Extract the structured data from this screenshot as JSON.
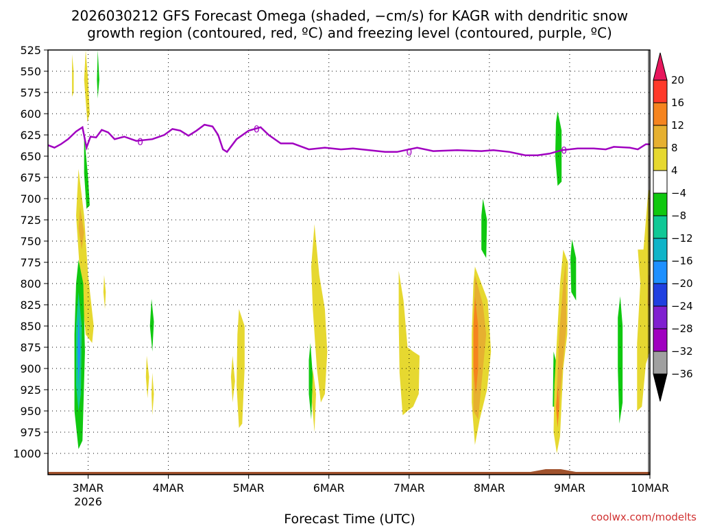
{
  "chart_data": {
    "type": "heatmap",
    "title_line1": "2026030212 GFS Forecast Omega (shaded, −cm/s) for KAGR with dendritic snow",
    "title_line2": "growth region (contoured, red, ºC) and freezing level (contoured, purple, ºC)",
    "xlabel": "Forecast Time (UTC)",
    "credit": "coolwx.com/modelts",
    "y_axis": {
      "levels": [
        525,
        550,
        575,
        600,
        625,
        650,
        675,
        700,
        725,
        750,
        775,
        800,
        825,
        850,
        875,
        900,
        925,
        950,
        975,
        1000
      ],
      "labels": [
        "525",
        "550",
        "575",
        "600",
        "625",
        "650",
        "675",
        "700",
        "725",
        "750",
        "775",
        "800",
        "825",
        "850",
        "875",
        "900",
        "925",
        "950",
        "975",
        "1000"
      ],
      "range": [
        525,
        1025
      ]
    },
    "x_axis": {
      "range_days": [
        2.5,
        10.0
      ],
      "ticks": [
        {
          "day": 3,
          "label": "3MAR",
          "sub": "2026"
        },
        {
          "day": 4,
          "label": "4MAR",
          "sub": ""
        },
        {
          "day": 5,
          "label": "5MAR",
          "sub": ""
        },
        {
          "day": 6,
          "label": "6MAR",
          "sub": ""
        },
        {
          "day": 7,
          "label": "7MAR",
          "sub": ""
        },
        {
          "day": 8,
          "label": "8MAR",
          "sub": ""
        },
        {
          "day": 9,
          "label": "9MAR",
          "sub": ""
        },
        {
          "day": 10,
          "label": "10MAR",
          "sub": ""
        }
      ]
    },
    "colorbar": {
      "labels": [
        "20",
        "16",
        "12",
        "8",
        "4",
        "−4",
        "−8",
        "−12",
        "−16",
        "−20",
        "−24",
        "−28",
        "−32",
        "−36"
      ],
      "colors": [
        "#e8175d",
        "#ff3a2a",
        "#f5841f",
        "#e6b030",
        "#e6d830",
        "#ffffff",
        "#10c810",
        "#10c896",
        "#10b4c8",
        "#1e90ff",
        "#2040e0",
        "#8020d0",
        "#a000c0",
        "#a0a0a0",
        "#000000"
      ],
      "legend": [
        {
          "color": "#e6d830",
          "label": "4 to 8"
        },
        {
          "color": "#e6b030",
          "label": "8 to 12"
        },
        {
          "color": "#f5841f",
          "label": "12 to 16"
        },
        {
          "color": "#10c810",
          "label": "−4 to −8"
        },
        {
          "color": "#10b4c8",
          "label": "−12 to −16"
        },
        {
          "color": "#1e90ff",
          "label": "−16 to −20"
        }
      ]
    },
    "freezing_level": {
      "color": "#a000c0",
      "contour_label": "0",
      "points": [
        [
          2.5,
          637
        ],
        [
          2.58,
          640
        ],
        [
          2.66,
          636
        ],
        [
          2.75,
          630
        ],
        [
          2.85,
          621
        ],
        [
          2.93,
          616
        ],
        [
          2.98,
          640
        ],
        [
          3.03,
          627
        ],
        [
          3.1,
          628
        ],
        [
          3.17,
          619
        ],
        [
          3.25,
          622
        ],
        [
          3.33,
          630
        ],
        [
          3.45,
          627
        ],
        [
          3.6,
          632
        ],
        [
          3.8,
          630
        ],
        [
          3.95,
          625
        ],
        [
          4.05,
          618
        ],
        [
          4.15,
          620
        ],
        [
          4.25,
          626
        ],
        [
          4.35,
          620
        ],
        [
          4.45,
          613
        ],
        [
          4.55,
          615
        ],
        [
          4.62,
          625
        ],
        [
          4.68,
          642
        ],
        [
          4.73,
          645
        ],
        [
          4.85,
          630
        ],
        [
          5.0,
          620
        ],
        [
          5.15,
          616
        ],
        [
          5.25,
          625
        ],
        [
          5.4,
          635
        ],
        [
          5.55,
          635
        ],
        [
          5.75,
          642
        ],
        [
          5.95,
          640
        ],
        [
          6.15,
          642
        ],
        [
          6.3,
          641
        ],
        [
          6.5,
          643
        ],
        [
          6.7,
          645
        ],
        [
          6.85,
          645
        ],
        [
          7.1,
          640
        ],
        [
          7.3,
          644
        ],
        [
          7.6,
          643
        ],
        [
          7.9,
          644
        ],
        [
          8.05,
          643
        ],
        [
          8.25,
          645
        ],
        [
          8.45,
          649
        ],
        [
          8.6,
          649
        ],
        [
          8.75,
          647
        ],
        [
          8.9,
          643
        ],
        [
          9.1,
          641
        ],
        [
          9.3,
          641
        ],
        [
          9.45,
          642
        ],
        [
          9.55,
          639
        ],
        [
          9.75,
          640
        ],
        [
          9.85,
          642
        ],
        [
          9.95,
          636
        ],
        [
          10.0,
          636
        ]
      ]
    },
    "omega_blobs": [
      {
        "color": "#e6d830",
        "points": [
          [
            2.8,
            530
          ],
          [
            2.82,
            550
          ],
          [
            2.82,
            575
          ],
          [
            2.8,
            580
          ]
        ]
      },
      {
        "color": "#e6d830",
        "points": [
          [
            2.97,
            525
          ],
          [
            3.0,
            560
          ],
          [
            3.02,
            600
          ],
          [
            2.99,
            610
          ],
          [
            2.95,
            560
          ]
        ]
      },
      {
        "color": "#10c810",
        "points": [
          [
            3.12,
            525
          ],
          [
            3.14,
            560
          ],
          [
            3.12,
            582
          ],
          [
            3.11,
            560
          ]
        ]
      },
      {
        "color": "#10c810",
        "points": [
          [
            2.95,
            625
          ],
          [
            3.0,
            675
          ],
          [
            3.02,
            708
          ],
          [
            2.98,
            712
          ],
          [
            2.95,
            670
          ]
        ]
      },
      {
        "color": "#e6d830",
        "points": [
          [
            2.88,
            665
          ],
          [
            2.95,
            720
          ],
          [
            3.0,
            790
          ],
          [
            3.07,
            850
          ],
          [
            3.05,
            870
          ],
          [
            2.97,
            860
          ],
          [
            2.9,
            790
          ],
          [
            2.85,
            720
          ]
        ]
      },
      {
        "color": "#e6b030",
        "points": [
          [
            2.9,
            710
          ],
          [
            2.95,
            740
          ],
          [
            2.92,
            760
          ],
          [
            2.88,
            735
          ]
        ]
      },
      {
        "color": "#10c810",
        "points": [
          [
            2.88,
            772
          ],
          [
            2.94,
            800
          ],
          [
            2.96,
            880
          ],
          [
            2.93,
            985
          ],
          [
            2.88,
            995
          ],
          [
            2.83,
            950
          ],
          [
            2.83,
            860
          ],
          [
            2.85,
            800
          ]
        ]
      },
      {
        "color": "#10c896",
        "points": [
          [
            2.88,
            810
          ],
          [
            2.92,
            850
          ],
          [
            2.91,
            930
          ],
          [
            2.88,
            950
          ],
          [
            2.85,
            920
          ],
          [
            2.85,
            850
          ]
        ]
      },
      {
        "color": "#1e90ff",
        "points": [
          [
            2.88,
            835
          ],
          [
            2.9,
            880
          ],
          [
            2.88,
            920
          ],
          [
            2.87,
            880
          ]
        ]
      },
      {
        "color": "#e6d830",
        "points": [
          [
            3.2,
            790
          ],
          [
            3.22,
            810
          ],
          [
            3.21,
            830
          ],
          [
            3.19,
            810
          ]
        ]
      },
      {
        "color": "#10c810",
        "points": [
          [
            3.79,
            818
          ],
          [
            3.82,
            845
          ],
          [
            3.8,
            880
          ],
          [
            3.77,
            850
          ]
        ]
      },
      {
        "color": "#e6d830",
        "points": [
          [
            3.73,
            885
          ],
          [
            3.76,
            910
          ],
          [
            3.74,
            935
          ],
          [
            3.72,
            910
          ]
        ]
      },
      {
        "color": "#e6d830",
        "points": [
          [
            3.8,
            905
          ],
          [
            3.82,
            930
          ],
          [
            3.8,
            955
          ],
          [
            3.79,
            930
          ]
        ]
      },
      {
        "color": "#e6d830",
        "points": [
          [
            4.8,
            885
          ],
          [
            4.83,
            915
          ],
          [
            4.8,
            940
          ],
          [
            4.78,
            910
          ]
        ]
      },
      {
        "color": "#e6d830",
        "points": [
          [
            4.88,
            830
          ],
          [
            4.95,
            850
          ],
          [
            4.95,
            900
          ],
          [
            4.92,
            965
          ],
          [
            4.88,
            970
          ],
          [
            4.85,
            920
          ],
          [
            4.86,
            860
          ]
        ]
      },
      {
        "color": "#e6d830",
        "points": [
          [
            5.82,
            730
          ],
          [
            5.88,
            790
          ],
          [
            5.95,
            830
          ],
          [
            5.98,
            880
          ],
          [
            5.95,
            930
          ],
          [
            5.9,
            940
          ],
          [
            5.85,
            900
          ],
          [
            5.8,
            830
          ],
          [
            5.78,
            780
          ]
        ]
      },
      {
        "color": "#10c810",
        "points": [
          [
            5.77,
            870
          ],
          [
            5.8,
            910
          ],
          [
            5.78,
            960
          ],
          [
            5.75,
            930
          ],
          [
            5.75,
            890
          ]
        ]
      },
      {
        "color": "#e6d830",
        "points": [
          [
            5.8,
            900
          ],
          [
            5.84,
            930
          ],
          [
            5.82,
            975
          ],
          [
            5.79,
            940
          ]
        ]
      },
      {
        "color": "#e6d830",
        "points": [
          [
            6.87,
            785
          ],
          [
            6.93,
            820
          ],
          [
            6.98,
            875
          ],
          [
            7.05,
            880
          ],
          [
            7.13,
            885
          ],
          [
            7.12,
            930
          ],
          [
            7.05,
            945
          ],
          [
            6.98,
            950
          ],
          [
            6.92,
            955
          ],
          [
            6.88,
            905
          ],
          [
            6.87,
            845
          ]
        ]
      },
      {
        "color": "#10c810",
        "points": [
          [
            7.92,
            700
          ],
          [
            7.97,
            725
          ],
          [
            7.96,
            770
          ],
          [
            7.9,
            760
          ],
          [
            7.9,
            720
          ]
        ]
      },
      {
        "color": "#e6d830",
        "points": [
          [
            7.82,
            780
          ],
          [
            7.9,
            800
          ],
          [
            7.98,
            820
          ],
          [
            8.02,
            880
          ],
          [
            7.97,
            925
          ],
          [
            7.88,
            960
          ],
          [
            7.82,
            990
          ],
          [
            7.78,
            940
          ],
          [
            7.78,
            860
          ],
          [
            7.8,
            800
          ]
        ]
      },
      {
        "color": "#e6b030",
        "points": [
          [
            7.82,
            790
          ],
          [
            7.92,
            825
          ],
          [
            7.96,
            860
          ],
          [
            7.92,
            900
          ],
          [
            7.86,
            960
          ],
          [
            7.8,
            950
          ],
          [
            7.8,
            860
          ]
        ]
      },
      {
        "color": "#f5841f",
        "points": [
          [
            7.82,
            815
          ],
          [
            7.86,
            850
          ],
          [
            7.86,
            900
          ],
          [
            7.83,
            930
          ],
          [
            7.8,
            900
          ],
          [
            7.8,
            850
          ]
        ]
      },
      {
        "color": "#10c810",
        "points": [
          [
            8.8,
            880
          ],
          [
            8.84,
            895
          ],
          [
            8.84,
            945
          ],
          [
            8.79,
            945
          ]
        ]
      },
      {
        "color": "#10c810",
        "points": [
          [
            8.85,
            597
          ],
          [
            8.9,
            620
          ],
          [
            8.9,
            680
          ],
          [
            8.85,
            685
          ],
          [
            8.82,
            650
          ],
          [
            8.83,
            610
          ]
        ]
      },
      {
        "color": "#e6d830",
        "points": [
          [
            8.92,
            760
          ],
          [
            8.98,
            775
          ],
          [
            8.97,
            860
          ],
          [
            8.92,
            900
          ],
          [
            8.88,
            980
          ],
          [
            8.84,
            1000
          ],
          [
            8.8,
            975
          ],
          [
            8.81,
            920
          ],
          [
            8.85,
            850
          ],
          [
            8.88,
            800
          ]
        ]
      },
      {
        "color": "#e6b030",
        "points": [
          [
            8.95,
            775
          ],
          [
            8.96,
            850
          ],
          [
            8.91,
            900
          ],
          [
            8.86,
            960
          ],
          [
            8.84,
            930
          ],
          [
            8.87,
            860
          ],
          [
            8.92,
            800
          ]
        ]
      },
      {
        "color": "#f5841f",
        "points": [
          [
            8.85,
            920
          ],
          [
            8.87,
            945
          ],
          [
            8.85,
            970
          ],
          [
            8.83,
            945
          ]
        ]
      },
      {
        "color": "#10c810",
        "points": [
          [
            9.03,
            748
          ],
          [
            9.08,
            770
          ],
          [
            9.08,
            820
          ],
          [
            9.02,
            810
          ],
          [
            9.01,
            770
          ]
        ]
      },
      {
        "color": "#10c810",
        "points": [
          [
            9.63,
            815
          ],
          [
            9.66,
            850
          ],
          [
            9.66,
            940
          ],
          [
            9.62,
            965
          ],
          [
            9.6,
            900
          ],
          [
            9.6,
            840
          ]
        ]
      },
      {
        "color": "#e6d830",
        "points": [
          [
            9.98,
            690
          ],
          [
            10.0,
            690
          ],
          [
            10.0,
            880
          ],
          [
            9.95,
            895
          ],
          [
            9.9,
            945
          ],
          [
            9.84,
            950
          ],
          [
            9.84,
            870
          ],
          [
            9.88,
            800
          ],
          [
            9.85,
            760
          ],
          [
            9.92,
            760
          ]
        ]
      },
      {
        "color": "#e6b030",
        "points": [
          [
            9.98,
            790
          ],
          [
            10.0,
            790
          ],
          [
            10.0,
            830
          ],
          [
            9.97,
            825
          ]
        ]
      }
    ]
  }
}
